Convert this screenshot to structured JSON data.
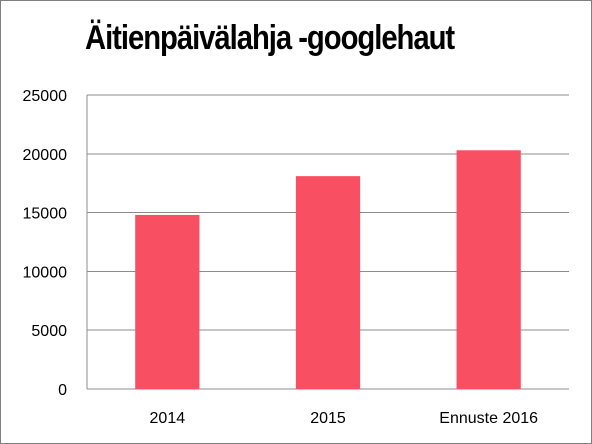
{
  "chart_data": {
    "type": "bar",
    "title": "Äitienpäivälahja -googlehaut",
    "categories": [
      "2014",
      "2015",
      "Ennuste 2016"
    ],
    "values": [
      14800,
      18100,
      20300
    ],
    "ylim": [
      0,
      25000
    ],
    "yticks": [
      0,
      5000,
      10000,
      15000,
      20000,
      25000
    ],
    "grid": true,
    "bar_color": "#f94f62",
    "xlabel": "",
    "ylabel": ""
  }
}
